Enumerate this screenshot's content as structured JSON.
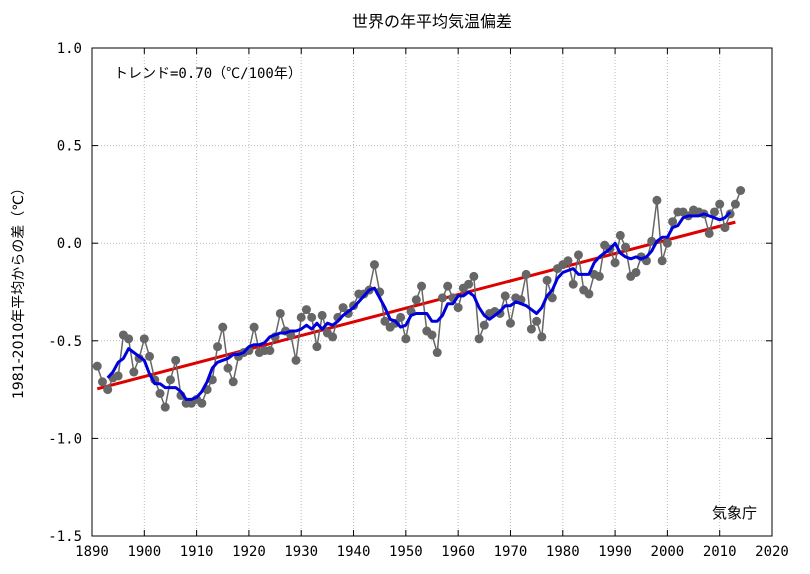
{
  "chart_data": {
    "type": "line",
    "title": "世界の年平均気温偏差",
    "ylabel": "1981-2010年平均からの差（℃）",
    "xlabel": "",
    "xlim": [
      1890,
      2020
    ],
    "ylim": [
      -1.5,
      1.0
    ],
    "x_ticks": [
      "1890",
      "1900",
      "1910",
      "1920",
      "1930",
      "1940",
      "1950",
      "1960",
      "1970",
      "1980",
      "1990",
      "2000",
      "2010",
      "2020"
    ],
    "y_ticks": [
      "1.0",
      "0.5",
      "0.0",
      "-0.5",
      "-1.0",
      "-1.5"
    ],
    "grid": true,
    "annotation": "トレンド=0.70（℃/100年）",
    "source_label": "気象庁",
    "colors": {
      "annual": "#666666",
      "moving_average": "#0000dd",
      "trend": "#dd0000",
      "grid": "#bbbbbb"
    },
    "series": [
      {
        "x": [
          1891,
          1892,
          1893,
          1894,
          1895,
          1896,
          1897,
          1898,
          1899,
          1900,
          1901,
          1902,
          1903,
          1904,
          1905,
          1906,
          1907,
          1908,
          1909,
          1910,
          1911,
          1912,
          1913,
          1914,
          1915,
          1916,
          1917,
          1918,
          1919,
          1920,
          1921,
          1922,
          1923,
          1924,
          1925,
          1926,
          1927,
          1928,
          1929,
          1930,
          1931,
          1932,
          1933,
          1934,
          1935,
          1936,
          1937,
          1938,
          1939,
          1940,
          1941,
          1942,
          1943,
          1944,
          1945,
          1946,
          1947,
          1948,
          1949,
          1950,
          1951,
          1952,
          1953,
          1954,
          1955,
          1956,
          1957,
          1958,
          1959,
          1960,
          1961,
          1962,
          1963,
          1964,
          1965,
          1966,
          1967,
          1968,
          1969,
          1970,
          1971,
          1972,
          1973,
          1974,
          1975,
          1976,
          1977,
          1978,
          1979,
          1980,
          1981,
          1982,
          1983,
          1984,
          1985,
          1986,
          1987,
          1988,
          1989,
          1990,
          1991,
          1992,
          1993,
          1994,
          1995,
          1996,
          1997,
          1998,
          1999,
          2000,
          2001,
          2002,
          2003,
          2004,
          2005,
          2006,
          2007,
          2008,
          2009,
          2010,
          2011,
          2012,
          2013,
          2014
        ],
        "values": [
          -0.63,
          -0.71,
          -0.75,
          -0.69,
          -0.68,
          -0.47,
          -0.49,
          -0.66,
          -0.59,
          -0.49,
          -0.58,
          -0.7,
          -0.77,
          -0.84,
          -0.7,
          -0.6,
          -0.78,
          -0.82,
          -0.82,
          -0.8,
          -0.82,
          -0.75,
          -0.7,
          -0.53,
          -0.43,
          -0.64,
          -0.71,
          -0.58,
          -0.56,
          -0.55,
          -0.43,
          -0.56,
          -0.55,
          -0.55,
          -0.48,
          -0.36,
          -0.45,
          -0.47,
          -0.6,
          -0.38,
          -0.34,
          -0.38,
          -0.53,
          -0.37,
          -0.46,
          -0.48,
          -0.38,
          -0.33,
          -0.36,
          -0.32,
          -0.26,
          -0.26,
          -0.24,
          -0.11,
          -0.25,
          -0.4,
          -0.43,
          -0.41,
          -0.38,
          -0.49,
          -0.35,
          -0.29,
          -0.22,
          -0.45,
          -0.47,
          -0.56,
          -0.28,
          -0.22,
          -0.28,
          -0.33,
          -0.23,
          -0.21,
          -0.17,
          -0.49,
          -0.42,
          -0.36,
          -0.35,
          -0.36,
          -0.27,
          -0.41,
          -0.28,
          -0.29,
          -0.16,
          -0.44,
          -0.4,
          -0.48,
          -0.19,
          -0.28,
          -0.13,
          -0.11,
          -0.09,
          -0.21,
          -0.06,
          -0.24,
          -0.26,
          -0.16,
          -0.17,
          -0.01,
          -0.03,
          -0.1,
          0.04,
          -0.02,
          -0.17,
          -0.15,
          -0.07,
          -0.09,
          0.01,
          0.22,
          -0.09,
          0.0,
          0.11,
          0.16,
          0.16,
          0.14,
          0.17,
          0.16,
          0.15,
          0.05,
          0.16,
          0.2,
          0.08,
          0.15,
          0.2,
          0.27
        ]
      },
      {
        "x": [
          1893,
          1894,
          1895,
          1896,
          1897,
          1898,
          1899,
          1900,
          1901,
          1902,
          1903,
          1904,
          1905,
          1906,
          1907,
          1908,
          1909,
          1910,
          1911,
          1912,
          1913,
          1914,
          1915,
          1916,
          1917,
          1918,
          1919,
          1920,
          1921,
          1922,
          1923,
          1924,
          1925,
          1926,
          1927,
          1928,
          1929,
          1930,
          1931,
          1932,
          1933,
          1934,
          1935,
          1936,
          1937,
          1938,
          1939,
          1940,
          1941,
          1942,
          1943,
          1944,
          1945,
          1946,
          1947,
          1948,
          1949,
          1950,
          1951,
          1952,
          1953,
          1954,
          1955,
          1956,
          1957,
          1958,
          1959,
          1960,
          1961,
          1962,
          1963,
          1964,
          1965,
          1966,
          1967,
          1968,
          1969,
          1970,
          1971,
          1972,
          1973,
          1974,
          1975,
          1976,
          1977,
          1978,
          1979,
          1980,
          1981,
          1982,
          1983,
          1984,
          1985,
          1986,
          1987,
          1988,
          1989,
          1990,
          1991,
          1992,
          1993,
          1994,
          1995,
          1996,
          1997,
          1998,
          1999,
          2000,
          2001,
          2002,
          2003,
          2004,
          2005,
          2006,
          2007,
          2008,
          2009,
          2010,
          2011,
          2012
        ],
        "values": [
          -0.69,
          -0.66,
          -0.61,
          -0.59,
          -0.54,
          -0.56,
          -0.58,
          -0.6,
          -0.67,
          -0.72,
          -0.72,
          -0.74,
          -0.74,
          -0.74,
          -0.76,
          -0.8,
          -0.8,
          -0.79,
          -0.76,
          -0.71,
          -0.64,
          -0.61,
          -0.6,
          -0.59,
          -0.57,
          -0.57,
          -0.56,
          -0.53,
          -0.52,
          -0.52,
          -0.51,
          -0.48,
          -0.47,
          -0.46,
          -0.46,
          -0.45,
          -0.45,
          -0.44,
          -0.42,
          -0.44,
          -0.41,
          -0.44,
          -0.41,
          -0.42,
          -0.4,
          -0.37,
          -0.35,
          -0.33,
          -0.3,
          -0.27,
          -0.24,
          -0.23,
          -0.28,
          -0.33,
          -0.39,
          -0.4,
          -0.43,
          -0.42,
          -0.37,
          -0.36,
          -0.36,
          -0.36,
          -0.4,
          -0.4,
          -0.37,
          -0.31,
          -0.31,
          -0.27,
          -0.27,
          -0.25,
          -0.27,
          -0.33,
          -0.37,
          -0.39,
          -0.37,
          -0.35,
          -0.32,
          -0.32,
          -0.3,
          -0.31,
          -0.32,
          -0.34,
          -0.36,
          -0.33,
          -0.27,
          -0.24,
          -0.18,
          -0.15,
          -0.14,
          -0.13,
          -0.16,
          -0.16,
          -0.16,
          -0.1,
          -0.07,
          -0.05,
          -0.03,
          0.0,
          -0.05,
          -0.07,
          -0.08,
          -0.07,
          -0.08,
          -0.07,
          -0.04,
          0.01,
          0.03,
          0.03,
          0.08,
          0.09,
          0.13,
          0.14,
          0.14,
          0.14,
          0.15,
          0.14,
          0.13,
          0.12,
          0.13,
          0.16
        ]
      },
      {
        "x": [
          1891,
          2013
        ],
        "values": [
          -0.746,
          0.108
        ]
      }
    ]
  }
}
